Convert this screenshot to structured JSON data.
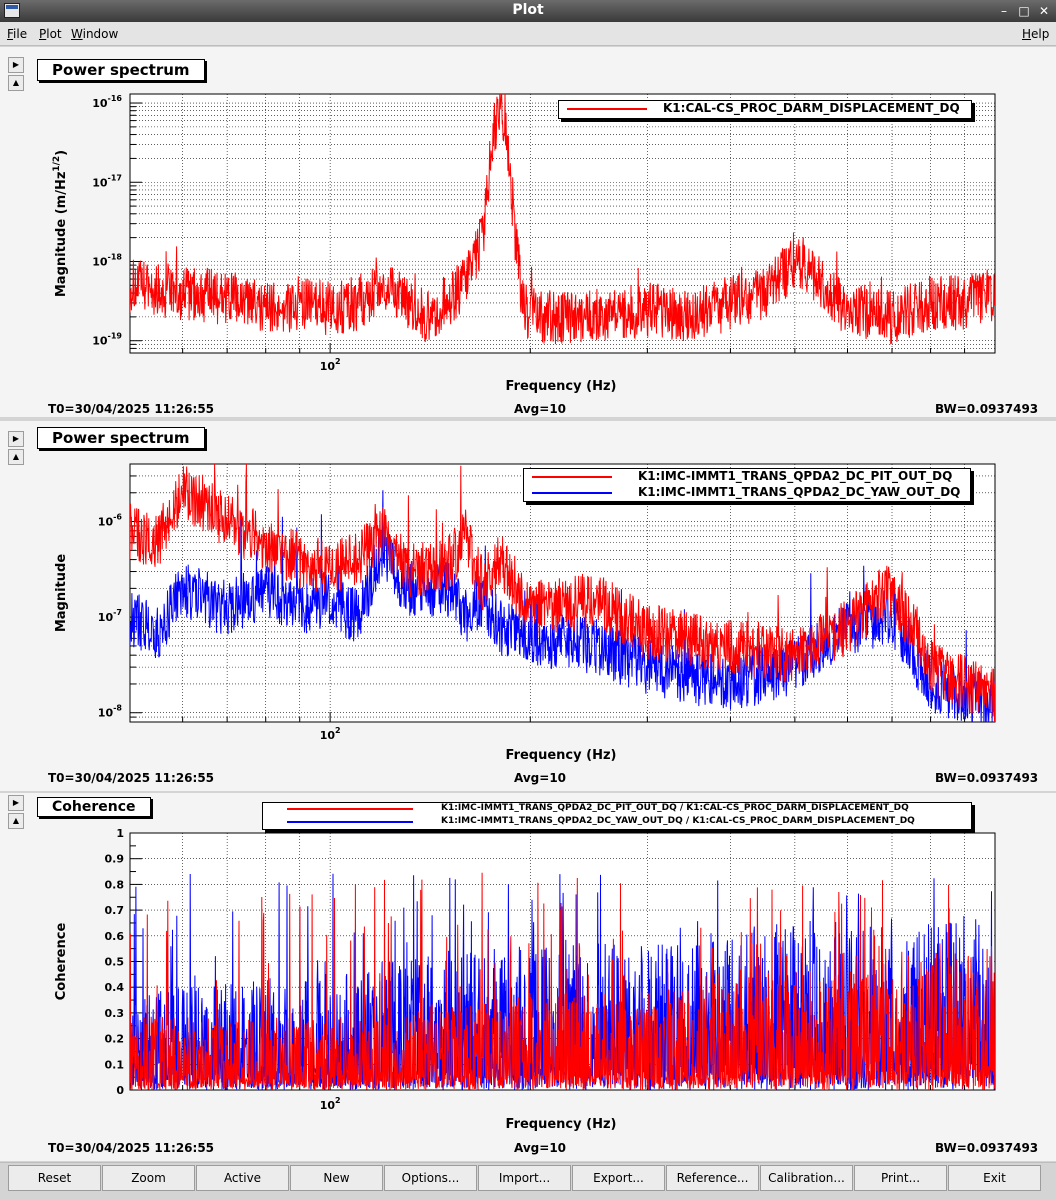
{
  "window": {
    "title": "Plot"
  },
  "menu": {
    "file": "File",
    "plot": "Plot",
    "window": "Window",
    "help": "Help"
  },
  "panels": [
    {
      "title": "Power spectrum",
      "ylabel": "Magnitude (m/Hz",
      "ylabel_sup": "1/2",
      "ylabel_close": ")",
      "xlabel": "Frequency (Hz)",
      "xtick": "10",
      "xtick_sup": "2",
      "yticks": [
        {
          "base": "10",
          "exp": "-16"
        },
        {
          "base": "10",
          "exp": "-17"
        },
        {
          "base": "10",
          "exp": "-18"
        },
        {
          "base": "10",
          "exp": "-19"
        }
      ],
      "legend": [
        "K1:CAL-CS_PROC_DARM_DISPLACEMENT_DQ"
      ],
      "t0": "T0=30/04/2025 11:26:55",
      "avg": "Avg=10",
      "bw": "BW=0.0937493"
    },
    {
      "title": "Power spectrum",
      "ylabel": "Magnitude",
      "xlabel": "Frequency (Hz)",
      "xtick": "10",
      "xtick_sup": "2",
      "yticks": [
        {
          "base": "10",
          "exp": "-6"
        },
        {
          "base": "10",
          "exp": "-7"
        },
        {
          "base": "10",
          "exp": "-8"
        }
      ],
      "legend": [
        "K1:IMC-IMMT1_TRANS_QPDA2_DC_PIT_OUT_DQ",
        "K1:IMC-IMMT1_TRANS_QPDA2_DC_YAW_OUT_DQ"
      ],
      "t0": "T0=30/04/2025 11:26:55",
      "avg": "Avg=10",
      "bw": "BW=0.0937493"
    },
    {
      "title": "Coherence",
      "ylabel": "Coherence",
      "xlabel": "Frequency (Hz)",
      "xtick": "10",
      "xtick_sup": "2",
      "yticks": [
        "1",
        "0.9",
        "0.8",
        "0.7",
        "0.6",
        "0.5",
        "0.4",
        "0.3",
        "0.2",
        "0.1",
        "0"
      ],
      "legend": [
        "K1:IMC-IMMT1_TRANS_QPDA2_DC_PIT_OUT_DQ / K1:CAL-CS_PROC_DARM_DISPLACEMENT_DQ",
        "K1:IMC-IMMT1_TRANS_QPDA2_DC_YAW_OUT_DQ / K1:CAL-CS_PROC_DARM_DISPLACEMENT_DQ"
      ],
      "t0": "T0=30/04/2025 11:26:55",
      "avg": "Avg=10",
      "bw": "BW=0.0937493"
    }
  ],
  "colors": {
    "series_red": "#ff0000",
    "series_blue": "#0000ff",
    "background": "#ffffff"
  },
  "buttons": [
    "Reset",
    "Zoom",
    "Active",
    "New",
    "Options...",
    "Import...",
    "Export...",
    "Reference...",
    "Calibration...",
    "Print...",
    "Exit"
  ],
  "chart_data": [
    {
      "type": "line",
      "title": "Power spectrum",
      "xlabel": "Frequency (Hz)",
      "ylabel": "Magnitude (m/Hz^1/2)",
      "xscale": "log",
      "yscale": "log",
      "xlim": [
        50,
        1000
      ],
      "ylim": [
        7e-20,
        1.3e-16
      ],
      "grid": true,
      "legend_position": "top-right",
      "series": [
        {
          "name": "K1:CAL-CS_PROC_DARM_DISPLACEMENT_DQ",
          "color": "#ff0000",
          "x": [
            50,
            60,
            70,
            80,
            90,
            100,
            110,
            120,
            130,
            140,
            150,
            160,
            170,
            175,
            180,
            185,
            190,
            195,
            200,
            250,
            300,
            350,
            400,
            450,
            500,
            600,
            700,
            800,
            900,
            1000
          ],
          "y": [
            5e-19,
            4e-19,
            3.5e-19,
            2.5e-19,
            3e-19,
            2.5e-19,
            3e-19,
            5e-19,
            3e-19,
            2e-19,
            3e-19,
            6e-19,
            2e-18,
            3e-17,
            1e-16,
            3e-17,
            2e-18,
            3e-19,
            2e-19,
            2e-19,
            2.5e-19,
            2e-19,
            3e-19,
            4e-19,
            1e-18,
            2.5e-19,
            2e-19,
            3e-19,
            3e-19,
            4e-19
          ]
        }
      ]
    },
    {
      "type": "line",
      "title": "Power spectrum",
      "xlabel": "Frequency (Hz)",
      "ylabel": "Magnitude",
      "xscale": "log",
      "yscale": "log",
      "xlim": [
        50,
        1000
      ],
      "ylim": [
        8e-09,
        4e-06
      ],
      "grid": true,
      "legend_position": "top-right",
      "series": [
        {
          "name": "K1:IMC-IMMT1_TRANS_QPDA2_DC_PIT_OUT_DQ",
          "color": "#ff0000",
          "x": [
            50,
            55,
            60,
            65,
            70,
            80,
            90,
            100,
            110,
            120,
            130,
            150,
            160,
            170,
            180,
            200,
            250,
            300,
            400,
            500,
            600,
            700,
            800,
            900,
            1000
          ],
          "y": [
            8e-07,
            6e-07,
            2e-06,
            1.5e-06,
            1e-06,
            6e-07,
            4e-07,
            3.5e-07,
            4e-07,
            8e-07,
            3e-07,
            3.5e-07,
            7e-07,
            2e-07,
            4e-07,
            1.2e-07,
            1.5e-07,
            7e-08,
            5e-08,
            4e-08,
            8e-08,
            2e-07,
            3e-08,
            2e-08,
            1.5e-08
          ]
        },
        {
          "name": "K1:IMC-IMMT1_TRANS_QPDA2_DC_YAW_OUT_DQ",
          "color": "#0000ff",
          "x": [
            50,
            55,
            60,
            70,
            80,
            90,
            100,
            110,
            120,
            130,
            150,
            160,
            170,
            180,
            200,
            250,
            300,
            400,
            500,
            600,
            700,
            800,
            900,
            1000
          ],
          "y": [
            1e-07,
            7e-08,
            2e-07,
            1.2e-07,
            2e-07,
            1.3e-07,
            1.5e-07,
            1e-07,
            5e-07,
            2e-07,
            2e-07,
            1e-07,
            1.5e-07,
            8e-08,
            6e-08,
            5e-08,
            3e-08,
            2e-08,
            3e-08,
            8e-08,
            1e-07,
            2e-08,
            1.5e-08,
            1.2e-08
          ]
        }
      ]
    },
    {
      "type": "line",
      "title": "Coherence",
      "xlabel": "Frequency (Hz)",
      "ylabel": "Coherence",
      "xscale": "log",
      "ylim": [
        0,
        1
      ],
      "xlim": [
        50,
        1000
      ],
      "grid": true,
      "legend_position": "top",
      "series": [
        {
          "name": "K1:IMC-IMMT1_TRANS_QPDA2_DC_PIT_OUT_DQ / K1:CAL-CS_PROC_DARM_DISPLACEMENT_DQ",
          "color": "#ff0000",
          "x": [
            50,
            100,
            200,
            300,
            500,
            700,
            1000
          ],
          "y": [
            0.15,
            0.15,
            0.2,
            0.2,
            0.25,
            0.25,
            0.3
          ]
        },
        {
          "name": "K1:IMC-IMMT1_TRANS_QPDA2_DC_YAW_OUT_DQ / K1:CAL-CS_PROC_DARM_DISPLACEMENT_DQ",
          "color": "#0000ff",
          "x": [
            50,
            100,
            200,
            300,
            500,
            700,
            1000
          ],
          "y": [
            0.2,
            0.25,
            0.3,
            0.3,
            0.35,
            0.35,
            0.35
          ]
        }
      ]
    }
  ]
}
